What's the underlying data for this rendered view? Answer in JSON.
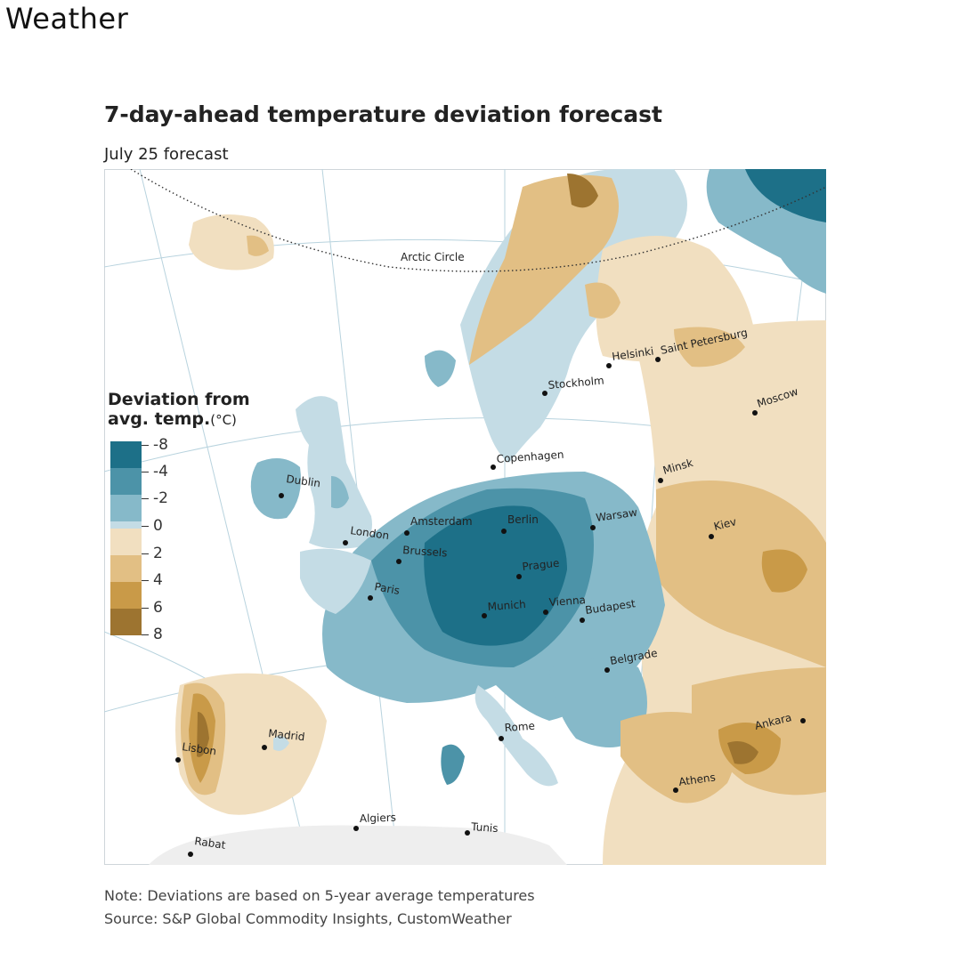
{
  "page": {
    "title": "Weather"
  },
  "figure": {
    "title": "7-day-ahead temperature deviation forecast",
    "subtitle": "July 25 forecast",
    "arctic_circle_label": "Arctic Circle",
    "note": "Note: Deviations are based on 5-year average temperatures",
    "source": "Source: S&P Global Commodity Insights, CustomWeather"
  },
  "legend": {
    "title_line1": "Deviation from",
    "title_line2": "avg. temp.",
    "unit": "(°C)",
    "bins": [
      {
        "color": "#1d7088"
      },
      {
        "color": "#4c93a8"
      },
      {
        "color": "#86b9c9"
      },
      {
        "color": "#c4dce5"
      },
      {
        "color": "#f1dfc0"
      },
      {
        "color": "#e2bf84"
      },
      {
        "color": "#c99a48"
      },
      {
        "color": "#9d7430"
      }
    ],
    "ticks": [
      "-8",
      "-4",
      "-2",
      "0",
      "2",
      "4",
      "6",
      "8"
    ]
  },
  "cities": [
    {
      "name": "Dublin"
    },
    {
      "name": "London"
    },
    {
      "name": "Amsterdam"
    },
    {
      "name": "Brussels"
    },
    {
      "name": "Paris"
    },
    {
      "name": "Berlin"
    },
    {
      "name": "Copenhagen"
    },
    {
      "name": "Stockholm"
    },
    {
      "name": "Helsinki"
    },
    {
      "name": "Saint Petersburg"
    },
    {
      "name": "Moscow"
    },
    {
      "name": "Minsk"
    },
    {
      "name": "Warsaw"
    },
    {
      "name": "Kiev"
    },
    {
      "name": "Prague"
    },
    {
      "name": "Munich"
    },
    {
      "name": "Vienna"
    },
    {
      "name": "Budapest"
    },
    {
      "name": "Belgrade"
    },
    {
      "name": "Rome"
    },
    {
      "name": "Madrid"
    },
    {
      "name": "Lisbon"
    },
    {
      "name": "Rabat"
    },
    {
      "name": "Algiers"
    },
    {
      "name": "Tunis"
    },
    {
      "name": "Athens"
    },
    {
      "name": "Ankara"
    }
  ]
}
